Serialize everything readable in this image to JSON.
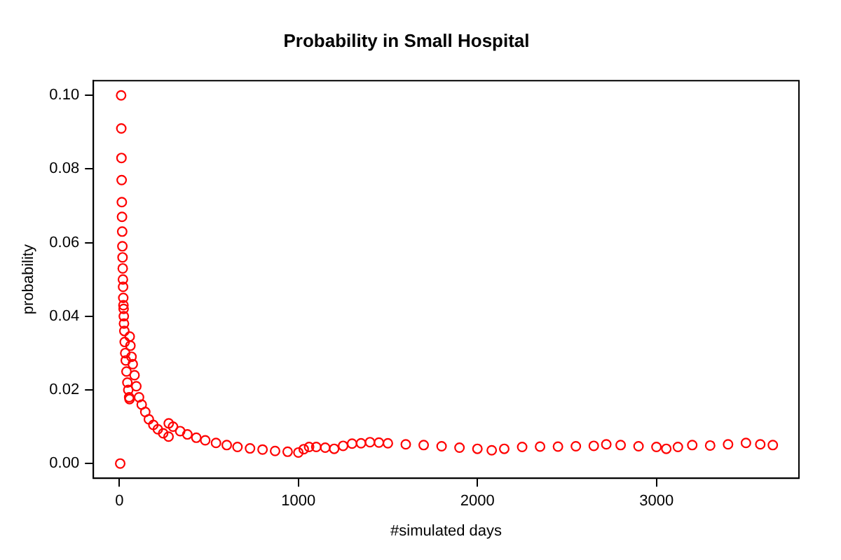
{
  "chart_data": {
    "type": "scatter",
    "title": "Probability in Small Hospital",
    "xlabel": "#simulated days",
    "ylabel": "probability",
    "x": [
      5,
      10,
      11,
      12,
      13,
      14,
      15,
      16,
      17,
      18,
      19,
      20,
      21,
      22,
      23,
      24,
      25,
      26,
      28,
      30,
      33,
      36,
      40,
      45,
      50,
      55,
      57,
      58,
      62,
      68,
      75,
      85,
      95,
      110,
      125,
      145,
      165,
      190,
      215,
      245,
      275,
      276,
      300,
      340,
      380,
      430,
      480,
      540,
      600,
      660,
      730,
      800,
      870,
      940,
      1000,
      1030,
      1060,
      1100,
      1150,
      1200,
      1250,
      1300,
      1350,
      1400,
      1450,
      1500,
      1600,
      1700,
      1800,
      1900,
      2000,
      2080,
      2150,
      2250,
      2350,
      2450,
      2550,
      2650,
      2720,
      2800,
      2900,
      3000,
      3055,
      3120,
      3200,
      3300,
      3400,
      3500,
      3580,
      3650
    ],
    "series": [
      {
        "color": "#ff0000",
        "values": [
          0,
          0.1,
          0.091,
          0.083,
          0.077,
          0.071,
          0.067,
          0.063,
          0.059,
          0.056,
          0.053,
          0.05,
          0.048,
          0.045,
          0.043,
          0.042,
          0.04,
          0.038,
          0.036,
          0.033,
          0.03,
          0.028,
          0.025,
          0.022,
          0.02,
          0.018,
          0.0175,
          0.0345,
          0.032,
          0.029,
          0.027,
          0.024,
          0.021,
          0.018,
          0.016,
          0.014,
          0.012,
          0.0105,
          0.0093,
          0.0082,
          0.0073,
          0.0109,
          0.01,
          0.0088,
          0.0079,
          0.007,
          0.0063,
          0.0056,
          0.005,
          0.0045,
          0.0041,
          0.0038,
          0.0034,
          0.0032,
          0.003,
          0.0039,
          0.0045,
          0.0045,
          0.0043,
          0.004,
          0.0048,
          0.0054,
          0.0055,
          0.0058,
          0.0057,
          0.0055,
          0.0052,
          0.005,
          0.0047,
          0.0043,
          0.004,
          0.0036,
          0.004,
          0.0045,
          0.0046,
          0.0046,
          0.0047,
          0.0048,
          0.0052,
          0.005,
          0.0047,
          0.0045,
          0.004,
          0.0045,
          0.005,
          0.0049,
          0.0052,
          0.0056,
          0.0052,
          0.005
        ]
      }
    ],
    "xlim": [
      -145,
      3796
    ],
    "xticks": [
      0,
      1000,
      2000,
      3000
    ],
    "ylim": [
      -0.004,
      0.104
    ],
    "yticks": [
      {
        "value": 0,
        "label": "0.00"
      },
      {
        "value": 0.02,
        "label": "0.02"
      },
      {
        "value": 0.04,
        "label": "0.04"
      },
      {
        "value": 0.06,
        "label": "0.06"
      },
      {
        "value": 0.08,
        "label": "0.08"
      },
      {
        "value": 0.1,
        "label": "0.10"
      }
    ],
    "marker": "circle",
    "grid": false,
    "legend": false
  }
}
